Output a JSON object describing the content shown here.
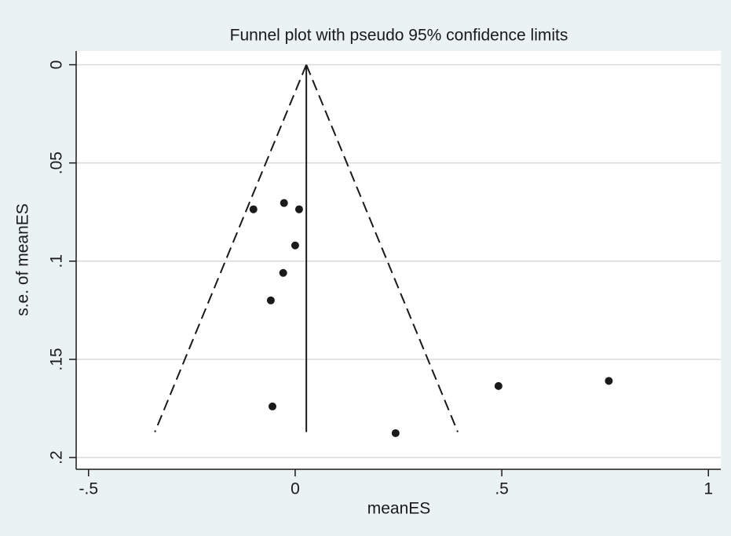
{
  "chart_data": {
    "type": "funnel",
    "title": "Funnel plot with pseudo 95% confidence limits",
    "x_label": "meanES",
    "y_label": "s.e. of meanES",
    "x": [
      -0.101,
      -0.027,
      0.0095,
      0.0,
      -0.029,
      -0.059,
      -0.055,
      0.243,
      0.492,
      0.759
    ],
    "y": [
      0.0736,
      0.0704,
      0.0736,
      0.092,
      0.106,
      0.12,
      0.174,
      0.1876,
      0.1636,
      0.161
    ],
    "color": "#1a1a1a",
    "pooled_estimate": 0.027,
    "funnel_se_max": 0.187,
    "z": 1.96,
    "xlim": [
      -0.53,
      1.03
    ],
    "ylim": [
      -0.007,
      0.206
    ],
    "y_reversed": true,
    "xticks": [
      {
        "value": -0.5,
        "label": "-.5"
      },
      0,
      {
        "value": 0.5,
        "label": ".5"
      },
      1
    ],
    "yticks": [
      0,
      {
        "value": 0.05,
        "label": ".05"
      },
      {
        "value": 0.1,
        "label": ".1"
      },
      {
        "value": 0.15,
        "label": ".15"
      },
      {
        "value": 0.2,
        "label": ".2"
      }
    ],
    "grid": true
  }
}
